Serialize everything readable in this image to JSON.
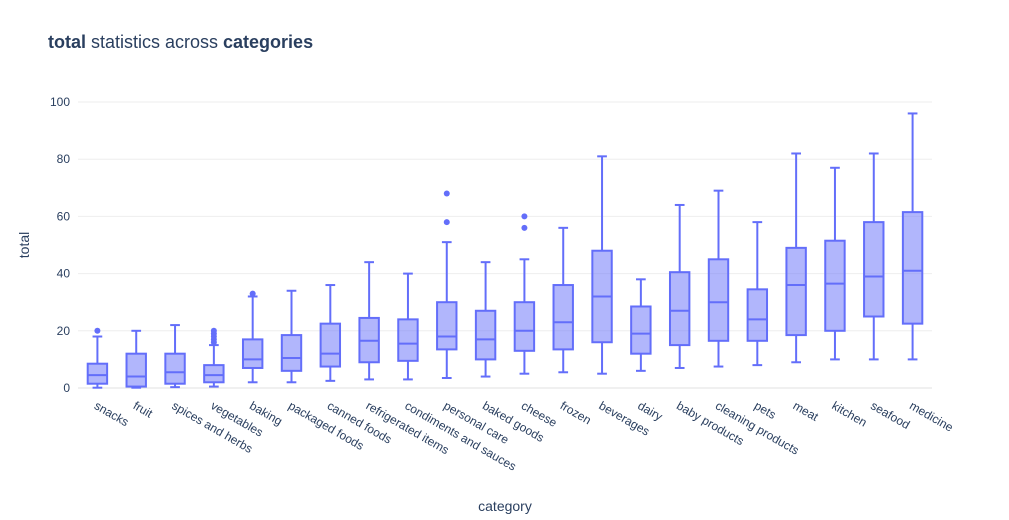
{
  "chart_data": {
    "type": "box",
    "title": {
      "bold1": "total",
      "middle": " statistics across ",
      "bold2": "categories"
    },
    "xlabel": "category",
    "ylabel": "total",
    "ylim": [
      0,
      100
    ],
    "yticks": [
      0,
      20,
      40,
      60,
      80,
      100
    ],
    "grid": true,
    "colors": {
      "box_fill": "rgba(99,110,250,0.5)",
      "box_line": "#636efa",
      "grid": "#eeeeee",
      "text": "#2a3f5f"
    },
    "categories": [
      "snacks",
      "fruit",
      "spices and herbs",
      "vegetables",
      "baking",
      "packaged foods",
      "canned foods",
      "refrigerated items",
      "condiments and sauces",
      "personal care",
      "baked goods",
      "cheese",
      "frozen",
      "beverages",
      "dairy",
      "baby products",
      "cleaning products",
      "pets",
      "meat",
      "kitchen",
      "seafood",
      "medicine"
    ],
    "boxes": [
      {
        "q1": 1.5,
        "median": 4.5,
        "q3": 8.5,
        "lower": 0.1,
        "upper": 18,
        "outliers": [
          20
        ]
      },
      {
        "q1": 0.5,
        "median": 4,
        "q3": 12,
        "lower": 0.1,
        "upper": 20,
        "outliers": []
      },
      {
        "q1": 1.5,
        "median": 5.5,
        "q3": 12,
        "lower": 0.3,
        "upper": 22,
        "outliers": []
      },
      {
        "q1": 2,
        "median": 4.5,
        "q3": 8,
        "lower": 0.5,
        "upper": 15,
        "outliers": [
          16,
          17,
          18,
          19,
          20
        ]
      },
      {
        "q1": 7,
        "median": 10,
        "q3": 17,
        "lower": 2,
        "upper": 32,
        "outliers": [
          33
        ]
      },
      {
        "q1": 6,
        "median": 10.5,
        "q3": 18.5,
        "lower": 2,
        "upper": 34,
        "outliers": []
      },
      {
        "q1": 7.5,
        "median": 12,
        "q3": 22.5,
        "lower": 2.5,
        "upper": 36,
        "outliers": []
      },
      {
        "q1": 9,
        "median": 16.5,
        "q3": 24.5,
        "lower": 3,
        "upper": 44,
        "outliers": []
      },
      {
        "q1": 9.5,
        "median": 15.5,
        "q3": 24,
        "lower": 3,
        "upper": 40,
        "outliers": []
      },
      {
        "q1": 13.5,
        "median": 18,
        "q3": 30,
        "lower": 3.5,
        "upper": 51,
        "outliers": [
          58,
          68
        ]
      },
      {
        "q1": 10,
        "median": 17,
        "q3": 27,
        "lower": 4,
        "upper": 44,
        "outliers": []
      },
      {
        "q1": 13,
        "median": 20,
        "q3": 30,
        "lower": 5,
        "upper": 45,
        "outliers": [
          56,
          60
        ]
      },
      {
        "q1": 13.5,
        "median": 23,
        "q3": 36,
        "lower": 5.5,
        "upper": 56,
        "outliers": []
      },
      {
        "q1": 16,
        "median": 32,
        "q3": 48,
        "lower": 5,
        "upper": 81,
        "outliers": []
      },
      {
        "q1": 12,
        "median": 19,
        "q3": 28.5,
        "lower": 6,
        "upper": 38,
        "outliers": []
      },
      {
        "q1": 15,
        "median": 27,
        "q3": 40.5,
        "lower": 7,
        "upper": 64,
        "outliers": []
      },
      {
        "q1": 16.5,
        "median": 30,
        "q3": 45,
        "lower": 7.5,
        "upper": 69,
        "outliers": []
      },
      {
        "q1": 16.5,
        "median": 24,
        "q3": 34.5,
        "lower": 8,
        "upper": 58,
        "outliers": []
      },
      {
        "q1": 18.5,
        "median": 36,
        "q3": 49,
        "lower": 9,
        "upper": 82,
        "outliers": []
      },
      {
        "q1": 20,
        "median": 36.5,
        "q3": 51.5,
        "lower": 10,
        "upper": 77,
        "outliers": []
      },
      {
        "q1": 25,
        "median": 39,
        "q3": 58,
        "lower": 10,
        "upper": 82,
        "outliers": []
      },
      {
        "q1": 22.5,
        "median": 41,
        "q3": 61.5,
        "lower": 10,
        "upper": 96,
        "outliers": []
      }
    ]
  }
}
